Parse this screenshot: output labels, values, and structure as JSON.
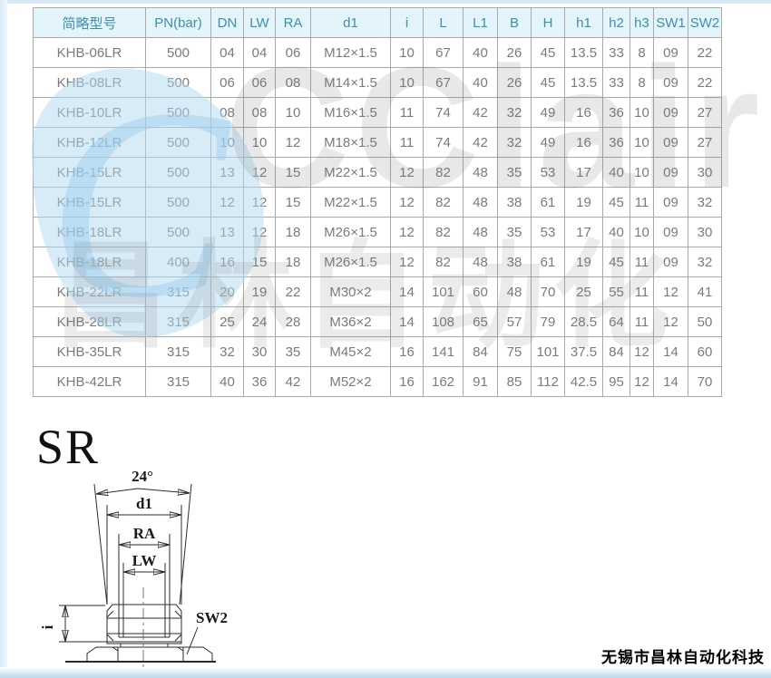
{
  "table": {
    "headers": [
      "简略型号",
      "PN(bar)",
      "DN",
      "LW",
      "RA",
      "d1",
      "i",
      "L",
      "L1",
      "B",
      "H",
      "h1",
      "h2",
      "h3",
      "SW1",
      "SW2"
    ],
    "rows": [
      [
        "KHB-06LR",
        "500",
        "04",
        "04",
        "06",
        "M12×1.5",
        "10",
        "67",
        "40",
        "26",
        "45",
        "13.5",
        "33",
        "8",
        "09",
        "22"
      ],
      [
        "KHB-08LR",
        "500",
        "06",
        "06",
        "08",
        "M14×1.5",
        "10",
        "67",
        "40",
        "26",
        "45",
        "13.5",
        "33",
        "8",
        "09",
        "22"
      ],
      [
        "KHB-10LR",
        "500",
        "08",
        "08",
        "10",
        "M16×1.5",
        "11",
        "74",
        "42",
        "32",
        "49",
        "16",
        "36",
        "10",
        "09",
        "27"
      ],
      [
        "KHB-12LR",
        "500",
        "10",
        "10",
        "12",
        "M18×1.5",
        "11",
        "74",
        "42",
        "32",
        "49",
        "16",
        "36",
        "10",
        "09",
        "27"
      ],
      [
        "KHB-15LR",
        "500",
        "13",
        "12",
        "15",
        "M22×1.5",
        "12",
        "82",
        "48",
        "35",
        "53",
        "17",
        "40",
        "10",
        "09",
        "30"
      ],
      [
        "KHB-15LR",
        "500",
        "12",
        "12",
        "15",
        "M22×1.5",
        "12",
        "82",
        "48",
        "38",
        "61",
        "19",
        "45",
        "11",
        "09",
        "32"
      ],
      [
        "KHB-18LR",
        "500",
        "13",
        "12",
        "18",
        "M26×1.5",
        "12",
        "82",
        "48",
        "35",
        "53",
        "17",
        "40",
        "10",
        "09",
        "30"
      ],
      [
        "KHB-18LR",
        "400",
        "16",
        "15",
        "18",
        "M26×1.5",
        "12",
        "82",
        "48",
        "38",
        "61",
        "19",
        "45",
        "11",
        "09",
        "32"
      ],
      [
        "KHB-22LR",
        "315",
        "20",
        "19",
        "22",
        "M30×2",
        "14",
        "101",
        "60",
        "48",
        "70",
        "25",
        "55",
        "11",
        "12",
        "41"
      ],
      [
        "KHB-28LR",
        "315",
        "25",
        "24",
        "28",
        "M36×2",
        "14",
        "108",
        "65",
        "57",
        "79",
        "28.5",
        "64",
        "11",
        "12",
        "50"
      ],
      [
        "KHB-35LR",
        "315",
        "32",
        "30",
        "35",
        "M45×2",
        "16",
        "141",
        "84",
        "75",
        "101",
        "37.5",
        "84",
        "12",
        "14",
        "60"
      ],
      [
        "KHB-42LR",
        "315",
        "40",
        "36",
        "42",
        "M52×2",
        "16",
        "162",
        "91",
        "85",
        "112",
        "42.5",
        "95",
        "12",
        "14",
        "70"
      ]
    ]
  },
  "diagram": {
    "title": "SR",
    "labels": {
      "angle": "24°",
      "d1": "d1",
      "ra": "RA",
      "lw": "LW",
      "i": "i",
      "sw2": "SW2"
    }
  },
  "watermark": {
    "script_letter": "C",
    "latin": "CClair",
    "cjk": "昌林自动化"
  },
  "footer": {
    "company": "无锡市昌林自动化科技"
  },
  "colors": {
    "header_bg": "#e3f4fa",
    "header_text": "#4090a8",
    "cell_text": "#7b7b7b",
    "border": "#a9a9a9",
    "frame_blue": "#b9d7ee"
  }
}
